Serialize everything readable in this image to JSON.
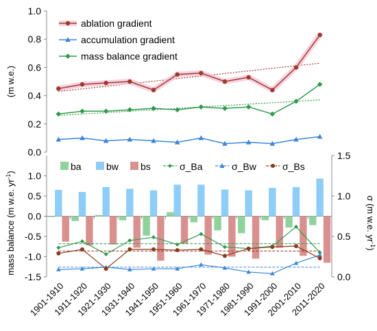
{
  "chart_data": [
    {
      "type": "line",
      "categories": [
        "1901-1910",
        "1911-1920",
        "1921-1930",
        "1931-1940",
        "1941-1950",
        "1951-1960",
        "1961-1970",
        "1971-1980",
        "1981-1990",
        "1991-2000",
        "2001-2010",
        "2011-2020"
      ],
      "ylabel": "(m w.e.)",
      "ylim": [
        0,
        1.0
      ],
      "yticks": [
        "0.0",
        "0.2",
        "0.4",
        "0.6",
        "0.8",
        "1.0"
      ],
      "grid": false,
      "legend_position": "top-left",
      "series": [
        {
          "name": "ablation gradient",
          "color": "#a0392b",
          "glow": "#f4c6d8",
          "values": [
            0.45,
            0.48,
            0.49,
            0.5,
            0.44,
            0.55,
            0.56,
            0.5,
            0.53,
            0.44,
            0.6,
            0.83
          ],
          "trend": [
            0.43,
            0.63
          ]
        },
        {
          "name": "accumulation gradient",
          "color": "#3a86d8",
          "values": [
            0.09,
            0.1,
            0.08,
            0.09,
            0.08,
            0.07,
            0.1,
            0.06,
            0.07,
            0.06,
            0.09,
            0.11
          ]
        },
        {
          "name": "mass balance gradient",
          "color": "#2e9a4a",
          "values": [
            0.27,
            0.29,
            0.29,
            0.3,
            0.31,
            0.3,
            0.32,
            0.31,
            0.32,
            0.27,
            0.36,
            0.48
          ],
          "trend": [
            0.26,
            0.37
          ]
        }
      ]
    },
    {
      "type": "bar",
      "categories": [
        "1901-1910",
        "1911-1920",
        "1921-1930",
        "1931-1940",
        "1941-1950",
        "1951-1960",
        "1961-1970",
        "1971-1980",
        "1981-1990",
        "1991-2000",
        "2001-2010",
        "2011-2020"
      ],
      "ylabel": "mass balance (m w.e. yr",
      "ylabel_sup": "-1",
      "ylabel_end": ")",
      "ylim": [
        -1.5,
        1.5
      ],
      "yticks": [
        "-1.5",
        "-1.0",
        "-0.5",
        "0.0",
        "0.5",
        "1.0"
      ],
      "y2label": "σ (m w.e. yr",
      "y2label_sup": "-1",
      "y2label_end": ")",
      "y2lim": [
        0,
        1.5
      ],
      "y2ticks": [
        "0.0",
        "0.5",
        "1.0",
        "1.5"
      ],
      "legend_position": "top",
      "series": [
        {
          "name": "ba",
          "kind": "bar",
          "color": "#8fd39a",
          "values": [
            -0.02,
            -0.12,
            0.03,
            -0.1,
            -0.48,
            0.1,
            -0.15,
            -0.35,
            -0.42,
            -0.1,
            -0.28,
            -0.22
          ]
        },
        {
          "name": "bw",
          "kind": "bar",
          "color": "#8ecdf7",
          "values": [
            0.65,
            0.6,
            0.72,
            0.68,
            0.64,
            0.78,
            0.78,
            0.66,
            0.64,
            0.7,
            0.72,
            0.93
          ]
        },
        {
          "name": "bs",
          "kind": "bar",
          "color": "#d9918f",
          "values": [
            -0.63,
            -0.72,
            -0.7,
            -0.78,
            -1.1,
            -0.68,
            -0.95,
            -1.0,
            -1.05,
            -0.78,
            -0.98,
            -1.15
          ]
        },
        {
          "name": "σ_Ba",
          "kind": "line",
          "axis": "right",
          "color": "#2e9a4a",
          "values": [
            0.36,
            0.44,
            0.28,
            0.45,
            0.49,
            0.4,
            0.53,
            0.37,
            0.35,
            0.38,
            0.62,
            0.3
          ],
          "mean": 0.41
        },
        {
          "name": "σ_Bw",
          "kind": "line",
          "axis": "right",
          "color": "#3a86d8",
          "values": [
            0.09,
            0.1,
            0.12,
            0.09,
            0.1,
            0.1,
            0.15,
            0.11,
            0.06,
            0.04,
            0.17,
            0.27
          ],
          "mean": 0.12
        },
        {
          "name": "σ_Bs",
          "kind": "line",
          "axis": "right",
          "color": "#8b3a1a",
          "values": [
            0.29,
            0.34,
            0.1,
            0.34,
            0.34,
            0.33,
            0.34,
            0.26,
            0.35,
            0.37,
            0.38,
            0.23
          ],
          "mean": 0.32
        }
      ]
    }
  ]
}
